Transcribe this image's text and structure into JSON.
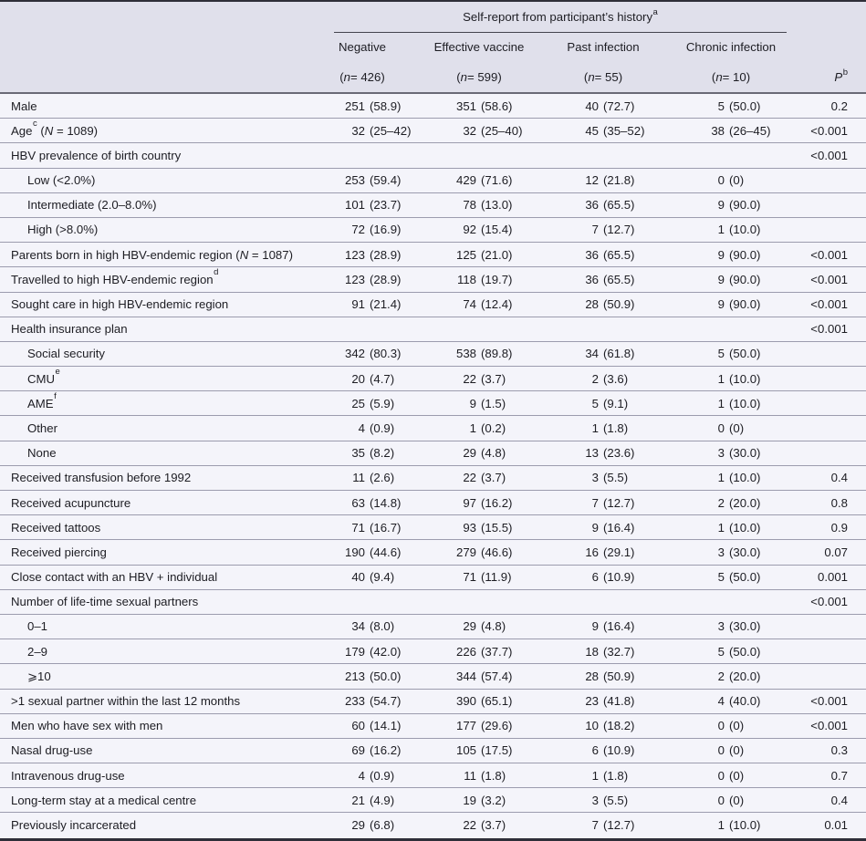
{
  "table": {
    "header": {
      "spanner": {
        "text": "Self-report from participant’s history",
        "sup": "a"
      },
      "columns": [
        {
          "label": "Negative",
          "n": "(n = 426)"
        },
        {
          "label": "Effective vaccine",
          "n": "(n = 599)"
        },
        {
          "label": "Past infection",
          "n": "(n = 55)"
        },
        {
          "label": "Chronic infection",
          "n": "(n = 10)"
        }
      ],
      "p_column": {
        "label": "P",
        "sup": "b"
      }
    },
    "rows": [
      {
        "label": "Male",
        "cells": [
          "251 (58.9)",
          "351 (58.6)",
          "40 (72.7)",
          "5 (50.0)"
        ],
        "p": "0.2"
      },
      {
        "label": "Age",
        "sup": "c",
        "rest": " (N = 1089)",
        "cells": [
          "32 (25–42)",
          "32 (25–40)",
          "45 (35–52)",
          "38 (26–45)"
        ],
        "p": "<0.001"
      },
      {
        "label": "HBV prevalence of birth country",
        "cells": [
          "",
          "",
          "",
          ""
        ],
        "p": "<0.001"
      },
      {
        "label": "Low (<2.0%)",
        "indent": true,
        "cells": [
          "253 (59.4)",
          "429 (71.6)",
          "12 (21.8)",
          "0 (0)"
        ],
        "p": ""
      },
      {
        "label": "Intermediate (2.0–8.0%)",
        "indent": true,
        "cells": [
          "101 (23.7)",
          "78 (13.0)",
          "36 (65.5)",
          "9 (90.0)"
        ],
        "p": ""
      },
      {
        "label": "High (>8.0%)",
        "indent": true,
        "cells": [
          "72 (16.9)",
          "92 (15.4)",
          "7 (12.7)",
          "1 (10.0)"
        ],
        "p": ""
      },
      {
        "label": "Parents born in high HBV-endemic region",
        "rest": " (N = 1087)",
        "cells": [
          "123 (28.9)",
          "125 (21.0)",
          "36 (65.5)",
          "9 (90.0)"
        ],
        "p": "<0.001"
      },
      {
        "label": "Travelled to high HBV-endemic region",
        "sup": "d",
        "cells": [
          "123 (28.9)",
          "118 (19.7)",
          "36 (65.5)",
          "9 (90.0)"
        ],
        "p": "<0.001"
      },
      {
        "label": "Sought care in high HBV-endemic region",
        "cells": [
          "91 (21.4)",
          "74 (12.4)",
          "28 (50.9)",
          "9 (90.0)"
        ],
        "p": "<0.001"
      },
      {
        "label": "Health insurance plan",
        "cells": [
          "",
          "",
          "",
          ""
        ],
        "p": "<0.001"
      },
      {
        "label": "Social security",
        "indent": true,
        "cells": [
          "342 (80.3)",
          "538 (89.8)",
          "34 (61.8)",
          "5 (50.0)"
        ],
        "p": ""
      },
      {
        "label": "CMU",
        "sup": "e",
        "indent": true,
        "cells": [
          "20 (4.7)",
          "22 (3.7)",
          "2 (3.6)",
          "1 (10.0)"
        ],
        "p": ""
      },
      {
        "label": "AME",
        "sup": "f",
        "indent": true,
        "cells": [
          "25 (5.9)",
          "9 (1.5)",
          "5 (9.1)",
          "1 (10.0)"
        ],
        "p": ""
      },
      {
        "label": "Other",
        "indent": true,
        "cells": [
          "4 (0.9)",
          "1 (0.2)",
          "1 (1.8)",
          "0 (0)"
        ],
        "p": ""
      },
      {
        "label": "None",
        "indent": true,
        "cells": [
          "35 (8.2)",
          "29 (4.8)",
          "13 (23.6)",
          "3 (30.0)"
        ],
        "p": ""
      },
      {
        "label": "Received transfusion before 1992",
        "cells": [
          "11 (2.6)",
          "22 (3.7)",
          "3 (5.5)",
          "1 (10.0)"
        ],
        "p": "0.4"
      },
      {
        "label": "Received acupuncture",
        "cells": [
          "63 (14.8)",
          "97 (16.2)",
          "7 (12.7)",
          "2 (20.0)"
        ],
        "p": "0.8"
      },
      {
        "label": "Received tattoos",
        "cells": [
          "71 (16.7)",
          "93 (15.5)",
          "9 (16.4)",
          "1 (10.0)"
        ],
        "p": "0.9"
      },
      {
        "label": "Received piercing",
        "cells": [
          "190 (44.6)",
          "279 (46.6)",
          "16 (29.1)",
          "3 (30.0)"
        ],
        "p": "0.07"
      },
      {
        "label": "Close contact with an HBV + individual",
        "cells": [
          "40 (9.4)",
          "71 (11.9)",
          "6 (10.9)",
          "5 (50.0)"
        ],
        "p": "0.001"
      },
      {
        "label": "Number of life-time sexual partners",
        "cells": [
          "",
          "",
          "",
          ""
        ],
        "p": "<0.001"
      },
      {
        "label": "0–1",
        "indent": true,
        "cells": [
          "34 (8.0)",
          "29 (4.8)",
          "9 (16.4)",
          "3 (30.0)"
        ],
        "p": ""
      },
      {
        "label": "2–9",
        "indent": true,
        "cells": [
          "179 (42.0)",
          "226 (37.7)",
          "18 (32.7)",
          "5 (50.0)"
        ],
        "p": ""
      },
      {
        "label": "⩾10",
        "indent": true,
        "cells": [
          "213 (50.0)",
          "344 (57.4)",
          "28 (50.9)",
          "2 (20.0)"
        ],
        "p": ""
      },
      {
        "label": ">1 sexual partner within the last 12 months",
        "cells": [
          "233 (54.7)",
          "390 (65.1)",
          "23 (41.8)",
          "4 (40.0)"
        ],
        "p": "<0.001"
      },
      {
        "label": "Men who have sex with men",
        "cells": [
          "60 (14.1)",
          "177 (29.6)",
          "10 (18.2)",
          "0 (0)"
        ],
        "p": "<0.001"
      },
      {
        "label": "Nasal drug-use",
        "cells": [
          "69 (16.2)",
          "105 (17.5)",
          "6 (10.9)",
          "0 (0)"
        ],
        "p": "0.3"
      },
      {
        "label": "Intravenous drug-use",
        "cells": [
          "4 (0.9)",
          "11 (1.8)",
          "1 (1.8)",
          "0 (0)"
        ],
        "p": "0.7"
      },
      {
        "label": "Long-term stay at a medical centre",
        "cells": [
          "21 (4.9)",
          "19 (3.2)",
          "3 (5.5)",
          "0 (0)"
        ],
        "p": "0.4"
      },
      {
        "label": "Previously incarcerated",
        "cells": [
          "29 (6.8)",
          "22 (3.7)",
          "7 (12.7)",
          "1 (10.0)"
        ],
        "p": "0.01"
      }
    ],
    "colors": {
      "header_bg": "#e0e0eb",
      "body_bg": "#f4f4fa",
      "separator": "#9c9cae",
      "border_dark": "#2e2e38",
      "divider": "#696975",
      "rule": "#44444e",
      "text": "#1d1d23"
    }
  }
}
